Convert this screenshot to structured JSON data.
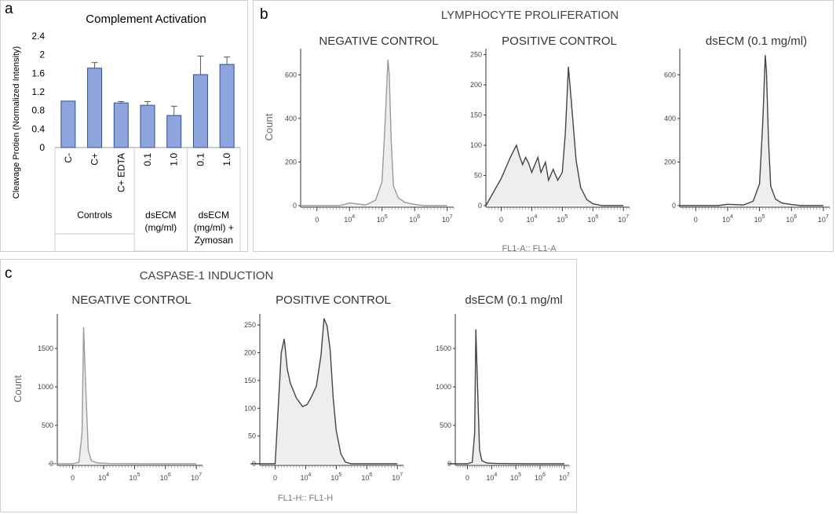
{
  "colors": {
    "bar": "#8ea4dc",
    "bar_stroke": "#2f4f99",
    "error": "#555555",
    "hist_fill": "#eeeeee",
    "hist_line": "#444444",
    "hist_line_light": "#9a9a9a",
    "panel_border": "#cfcfcf",
    "axis": "#333333",
    "axis_text": "#444444"
  },
  "panel_a": {
    "letter": "a",
    "chart_data": {
      "type": "bar",
      "title": "Complement  Activation",
      "ylabel": "Cleavage Protien (Normalized Intensity)",
      "ylim": [
        0,
        2.4
      ],
      "yticks": [
        "0",
        "0.4",
        "0.8",
        "1.2",
        "1.6",
        "2",
        "2.4"
      ],
      "categories": [
        "C-",
        "C+",
        "C+ EDTA",
        "0.1",
        "1.0",
        "0.1",
        "1.0"
      ],
      "values": [
        1.0,
        1.71,
        0.96,
        0.91,
        0.69,
        1.57,
        1.79
      ],
      "errors": [
        0,
        0.12,
        0.03,
        0.08,
        0.2,
        0.4,
        0.16
      ],
      "groups": [
        {
          "label": "Controls",
          "count": 3
        },
        {
          "label": "dsECM (mg/ml)",
          "count": 2
        },
        {
          "label": "dsECM (mg/ml) + Zymosan",
          "count": 2
        }
      ]
    }
  },
  "panel_b": {
    "letter": "b",
    "title": "LYMPHOCYTE PROLIFERATION",
    "x_label": "FL1-A:: FL1-A",
    "charts": [
      {
        "title": "NEGATIVE CONTROL",
        "ylabel": "Count",
        "yticks": [
          "0",
          "200",
          "400",
          "600"
        ],
        "ymax": 720,
        "peak": "light",
        "x": [
          2.5,
          3.7,
          4.0,
          4.5,
          4.8,
          5.0,
          5.1,
          5.18,
          5.22,
          5.28,
          5.35,
          5.5,
          5.7,
          6.0,
          6.3,
          7.0
        ],
        "y": [
          0,
          0,
          12,
          3,
          25,
          110,
          400,
          670,
          600,
          300,
          90,
          35,
          15,
          5,
          0,
          0
        ]
      },
      {
        "title": "POSITIVE CONTROL",
        "ylabel": "",
        "yticks": [
          "0",
          "50",
          "100",
          "150",
          "200",
          "250"
        ],
        "ymax": 260,
        "peak": "dark",
        "x": [
          2.5,
          3.0,
          3.3,
          3.5,
          3.6,
          3.7,
          3.8,
          3.9,
          4.0,
          4.2,
          4.3,
          4.45,
          4.55,
          4.7,
          4.85,
          5.0,
          5.1,
          5.2,
          5.3,
          5.45,
          5.6,
          5.8,
          6.0,
          6.3,
          7.0
        ],
        "y": [
          0,
          45,
          80,
          100,
          82,
          68,
          80,
          70,
          55,
          80,
          55,
          72,
          42,
          60,
          42,
          55,
          120,
          230,
          170,
          75,
          30,
          10,
          3,
          0,
          0
        ]
      },
      {
        "title": "dsECM (0.1 mg/ml)",
        "ylabel": "",
        "yticks": [
          "0",
          "200",
          "400",
          "600"
        ],
        "ymax": 720,
        "peak": "dark",
        "x": [
          2.5,
          3.7,
          4.0,
          4.5,
          4.8,
          5.0,
          5.1,
          5.18,
          5.22,
          5.28,
          5.35,
          5.5,
          5.7,
          6.0,
          6.3,
          7.0
        ],
        "y": [
          0,
          0,
          6,
          3,
          20,
          100,
          380,
          690,
          610,
          300,
          90,
          30,
          12,
          5,
          0,
          0
        ]
      }
    ]
  },
  "panel_c": {
    "letter": "c",
    "title": "CASPASE-1 INDUCTION",
    "x_label": "FL1-H:: FL1-H",
    "charts": [
      {
        "title": "NEGATIVE CONTROL",
        "ylabel": "Count",
        "yticks": [
          "0",
          "500",
          "1000",
          "1500"
        ],
        "ymax": 1950,
        "peak": "light",
        "x": [
          2.2,
          3.0,
          3.2,
          3.3,
          3.35,
          3.42,
          3.5,
          3.6,
          3.8,
          4.2,
          5.5,
          7.0
        ],
        "y": [
          0,
          0,
          20,
          400,
          1780,
          1000,
          180,
          40,
          10,
          3,
          0,
          0
        ]
      },
      {
        "title": "POSITIVE CONTROL",
        "ylabel": "",
        "yticks": [
          "0",
          "50",
          "100",
          "150",
          "200",
          "250"
        ],
        "ymax": 270,
        "peak": "dark",
        "x": [
          2.2,
          3.0,
          3.2,
          3.3,
          3.4,
          3.5,
          3.7,
          3.9,
          4.05,
          4.2,
          4.35,
          4.5,
          4.6,
          4.7,
          4.8,
          4.9,
          5.0,
          5.15,
          5.3,
          5.5,
          7.0
        ],
        "y": [
          0,
          0,
          200,
          225,
          170,
          145,
          118,
          103,
          107,
          122,
          140,
          195,
          262,
          248,
          205,
          120,
          60,
          18,
          3,
          0,
          0
        ]
      },
      {
        "title": "dsECM (0.1 mg/ml",
        "ylabel": "",
        "yticks": [
          "0",
          "500",
          "1000",
          "1500"
        ],
        "ymax": 1950,
        "peak": "dark",
        "x": [
          2.2,
          3.0,
          3.2,
          3.3,
          3.35,
          3.42,
          3.5,
          3.6,
          3.8,
          4.2,
          5.5,
          7.0
        ],
        "y": [
          0,
          0,
          20,
          400,
          1750,
          1000,
          180,
          40,
          10,
          3,
          0,
          0
        ]
      }
    ]
  },
  "hist_xticks": [
    {
      "label": "0",
      "v": 3.0
    },
    {
      "label": "10",
      "exp": "4",
      "v": 4
    },
    {
      "label": "10",
      "exp": "5",
      "v": 5
    },
    {
      "label": "10",
      "exp": "6",
      "v": 6
    },
    {
      "label": "10",
      "exp": "7",
      "v": 7
    }
  ]
}
